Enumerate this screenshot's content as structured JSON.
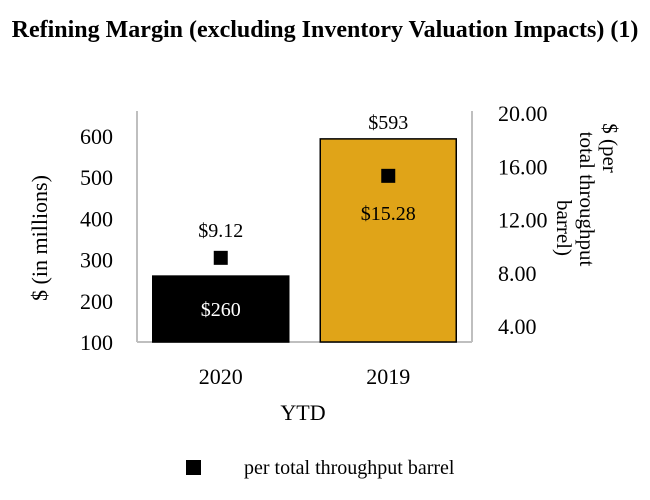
{
  "chart_data": {
    "type": "bar",
    "title": "Refining Margin (excluding Inventory Valuation Impacts) (1)",
    "categories": [
      "2020",
      "2019"
    ],
    "xlabel": "YTD",
    "ylabel": "$ (in millions)",
    "y2label": "$ (per total throughput barrel)",
    "ylim": [
      100,
      600
    ],
    "yticks": [
      100,
      200,
      300,
      400,
      500,
      600
    ],
    "y2lim": [
      4.0,
      20.0
    ],
    "y2ticks": [
      "4.00",
      "8.00",
      "12.00",
      "16.00",
      "20.00"
    ],
    "grid": false,
    "legend_position": "bottom",
    "series": [
      {
        "type": "bar",
        "axis": "left",
        "values": [
          260,
          593
        ],
        "labels": [
          "$260",
          "$593"
        ],
        "colors": [
          "#000000",
          "#E0A418"
        ]
      },
      {
        "type": "scatter",
        "axis": "right",
        "name": "per total throughput barrel",
        "values": [
          9.12,
          15.28
        ],
        "labels": [
          "$9.12",
          "$15.28"
        ],
        "color": "#000000"
      }
    ]
  }
}
